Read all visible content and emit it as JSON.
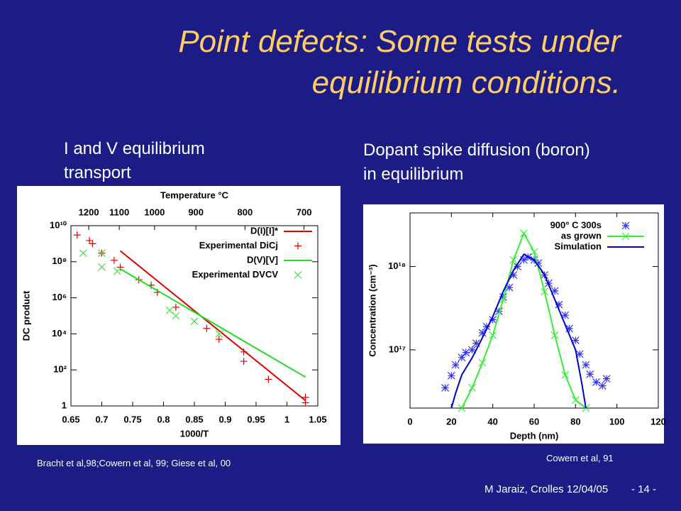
{
  "slide": {
    "title_lines": [
      "Point defects: Some tests under",
      "equilibrium conditions."
    ],
    "left_caption": "I and V equilibrium transport",
    "right_caption": "Dopant spike diffusion (boron) in equilibrium",
    "left_citation": "Bracht et al,98;Cowern et al, 99; Giese et al, 00",
    "right_citation": "Cowern et al, 91",
    "footer": "M Jaraiz, Crolles 12/04/05",
    "page": "- 14 -"
  },
  "chart_data": [
    {
      "type": "scatter",
      "xlabel": "1000/T",
      "ylabel": "DC product",
      "x2label": "Temperature °C",
      "xlim": [
        0.65,
        1.05
      ],
      "xticks": [
        0.65,
        0.7,
        0.75,
        0.8,
        0.85,
        0.9,
        0.95,
        1,
        1.05
      ],
      "x2ticks": [
        {
          "value": 0.6789,
          "label": "1200"
        },
        {
          "value": 0.7283,
          "label": "1100"
        },
        {
          "value": 0.7855,
          "label": "1000"
        },
        {
          "value": 0.8525,
          "label": "900"
        },
        {
          "value": 0.932,
          "label": "800"
        },
        {
          "value": 1.0277,
          "label": "700"
        }
      ],
      "ylim": [
        1,
        10000000000
      ],
      "log_y": true,
      "yticks": [
        1,
        {
          "value": 100,
          "label": "10²"
        },
        {
          "value": 10000,
          "label": "10⁴"
        },
        {
          "value": 1000000,
          "label": "10⁶"
        },
        {
          "value": 100000000,
          "label": "10⁸"
        },
        {
          "value": 10000000000,
          "label": "10¹⁰"
        }
      ],
      "legend": "upper right",
      "series": [
        {
          "name": "D(I)[I]*",
          "color": "#e00000",
          "line": true,
          "x": [
            0.73,
            1.03
          ],
          "values": [
            400000000,
            2
          ]
        },
        {
          "name": "Experimental DiCj",
          "color": "#e00000",
          "marker": "plus",
          "x": [
            0.66,
            0.68,
            0.685,
            0.7,
            0.72,
            0.73,
            0.76,
            0.78,
            0.79,
            0.82,
            0.87,
            0.89,
            0.93,
            0.93,
            0.97,
            1.03,
            1.03
          ],
          "values": [
            3000000000,
            1500000000,
            1000000000,
            300000000,
            120000000,
            50000000,
            10000000,
            5000000,
            2000000,
            300000,
            20000,
            5000,
            1000,
            300,
            30,
            3,
            1.5
          ]
        },
        {
          "name": "D(V)[V]",
          "color": "#22dd22",
          "line": true,
          "x": [
            0.73,
            1.03
          ],
          "values": [
            40000000,
            40
          ]
        },
        {
          "name": "Experimental DVCV",
          "color": "#44dd44",
          "marker": "x",
          "x": [
            0.67,
            0.7,
            0.7,
            0.725,
            0.81,
            0.82,
            0.85,
            0.89
          ],
          "values": [
            300000000,
            300000000,
            50000000,
            30000000,
            200000,
            100000,
            50000,
            10000
          ]
        }
      ]
    },
    {
      "type": "scatter",
      "xlabel": "Depth (nm)",
      "ylabel": "Concentration (cm⁻³)",
      "xlim": [
        0,
        120
      ],
      "xticks": [
        0,
        20,
        40,
        60,
        80,
        100,
        120
      ],
      "ylim": [
        20000000000000000,
        4400000000000000000
      ],
      "log_y": true,
      "yticks": [
        {
          "value": 100000000000000000,
          "label": "10¹⁷"
        },
        {
          "value": 1000000000000000000,
          "label": "10¹⁸"
        }
      ],
      "legend": "upper right",
      "series": [
        {
          "name": "900° C 300s",
          "color": "#3333ee",
          "marker": "star",
          "x": [
            17,
            20,
            22,
            25,
            27,
            30,
            32,
            35,
            37,
            40,
            43,
            45,
            48,
            50,
            52,
            55,
            57,
            60,
            62,
            65,
            67,
            70,
            72,
            75,
            77,
            80,
            82,
            85,
            87,
            90,
            93,
            95
          ],
          "values": [
            35000000000000000,
            49000000000000000,
            66000000000000000,
            81000000000000000,
            93000000000000000,
            100000000000000000,
            120000000000000000,
            160000000000000000,
            190000000000000000,
            230000000000000000,
            290000000000000000,
            430000000000000000,
            560000000000000000,
            790000000000000000,
            1000000000000000000,
            1200000000000000000,
            1300000000000000000,
            1200000000000000000,
            1100000000000000000,
            790000000000000000,
            630000000000000000,
            510000000000000000,
            350000000000000000,
            260000000000000000,
            180000000000000000,
            130000000000000000,
            89000000000000000,
            66000000000000000,
            51000000000000000,
            41000000000000000,
            37000000000000000,
            45000000000000000
          ]
        },
        {
          "name": "as grown",
          "color": "#33ee33",
          "line": true,
          "marker": "x",
          "x": [
            25,
            30,
            35,
            40,
            45,
            50,
            55,
            60,
            65,
            70,
            75,
            80,
            85
          ],
          "values": [
            20000000000000000,
            35000000000000000,
            70000000000000000,
            150000000000000000,
            400000000000000000,
            1200000000000000000,
            2500000000000000000,
            1500000000000000000,
            500000000000000000,
            150000000000000000,
            50000000000000000,
            25000000000000000,
            20000000000000000
          ]
        },
        {
          "name": "Simulation",
          "color": "#0000cc",
          "line": true,
          "x": [
            20,
            22,
            25,
            30,
            35,
            40,
            45,
            50,
            55,
            60,
            65,
            70,
            75,
            80,
            83,
            85
          ],
          "values": [
            20000000000000000,
            30000000000000000,
            50000000000000000,
            80000000000000000,
            140000000000000000,
            250000000000000000,
            500000000000000000,
            900000000000000000,
            1400000000000000000,
            1200000000000000000,
            800000000000000000,
            400000000000000000,
            200000000000000000,
            100000000000000000,
            40000000000000000,
            20000000000000000
          ]
        }
      ]
    }
  ]
}
